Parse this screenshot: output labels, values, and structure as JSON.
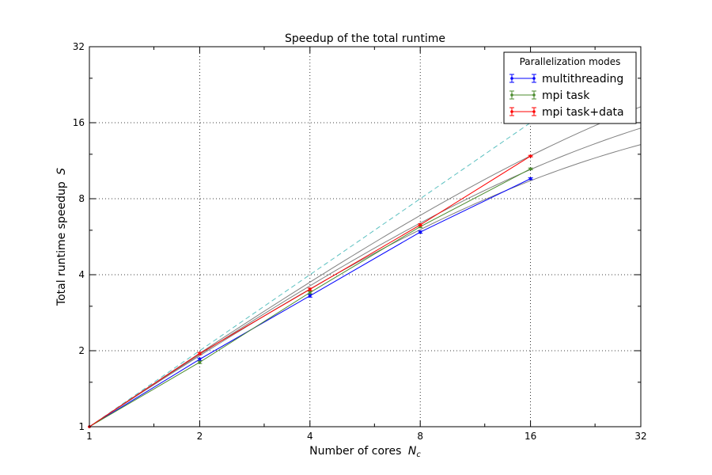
{
  "chart_data": {
    "type": "line",
    "title": "Speedup of the total runtime",
    "xlabel": "Number of cores",
    "xlabel_symbol": "N",
    "xlabel_subscript": "c",
    "ylabel": "Total runtime speedup",
    "ylabel_symbol": "S",
    "xscale": "log2",
    "yscale": "log2",
    "xlim": [
      1,
      32
    ],
    "ylim": [
      1,
      32
    ],
    "xticks": [
      1,
      2,
      4,
      8,
      16,
      32
    ],
    "yticks": [
      1,
      2,
      4,
      8,
      16,
      32
    ],
    "grid": true,
    "legend": {
      "title": "Parallelization modes",
      "position": "top-right"
    },
    "series": [
      {
        "name": "multithreading",
        "color": "#0000ff",
        "x": [
          1,
          2,
          4,
          8,
          16
        ],
        "y": [
          1,
          1.85,
          3.3,
          5.9,
          9.6
        ],
        "yerr": [
          0,
          0.02,
          0.04,
          0.06,
          0.08
        ]
      },
      {
        "name": "mpi task",
        "color": "#4b8b2e",
        "x": [
          1,
          2,
          4,
          8,
          16
        ],
        "y": [
          1,
          1.8,
          3.4,
          6.2,
          10.5
        ],
        "yerr": [
          0,
          0.02,
          0.04,
          0.06,
          0.08
        ]
      },
      {
        "name": "mpi task+data",
        "color": "#ff0000",
        "x": [
          1,
          2,
          4,
          8,
          16
        ],
        "y": [
          1,
          1.95,
          3.5,
          6.3,
          11.8
        ],
        "yerr": [
          0,
          0.02,
          0.04,
          0.06,
          0.08
        ]
      }
    ],
    "reference_lines": [
      {
        "kind": "ideal",
        "style": "dashed",
        "color": "#5bc0c0",
        "x": [
          1,
          16
        ],
        "y": [
          1,
          16
        ]
      },
      {
        "kind": "fit",
        "style": "solid",
        "color": "#808080",
        "f": 0.0235,
        "x_range": [
          1,
          32
        ]
      },
      {
        "kind": "fit",
        "style": "solid",
        "color": "#808080",
        "f": 0.0355,
        "x_range": [
          1,
          32
        ]
      },
      {
        "kind": "fit",
        "style": "solid",
        "color": "#808080",
        "f": 0.0465,
        "x_range": [
          1,
          32
        ]
      }
    ]
  }
}
